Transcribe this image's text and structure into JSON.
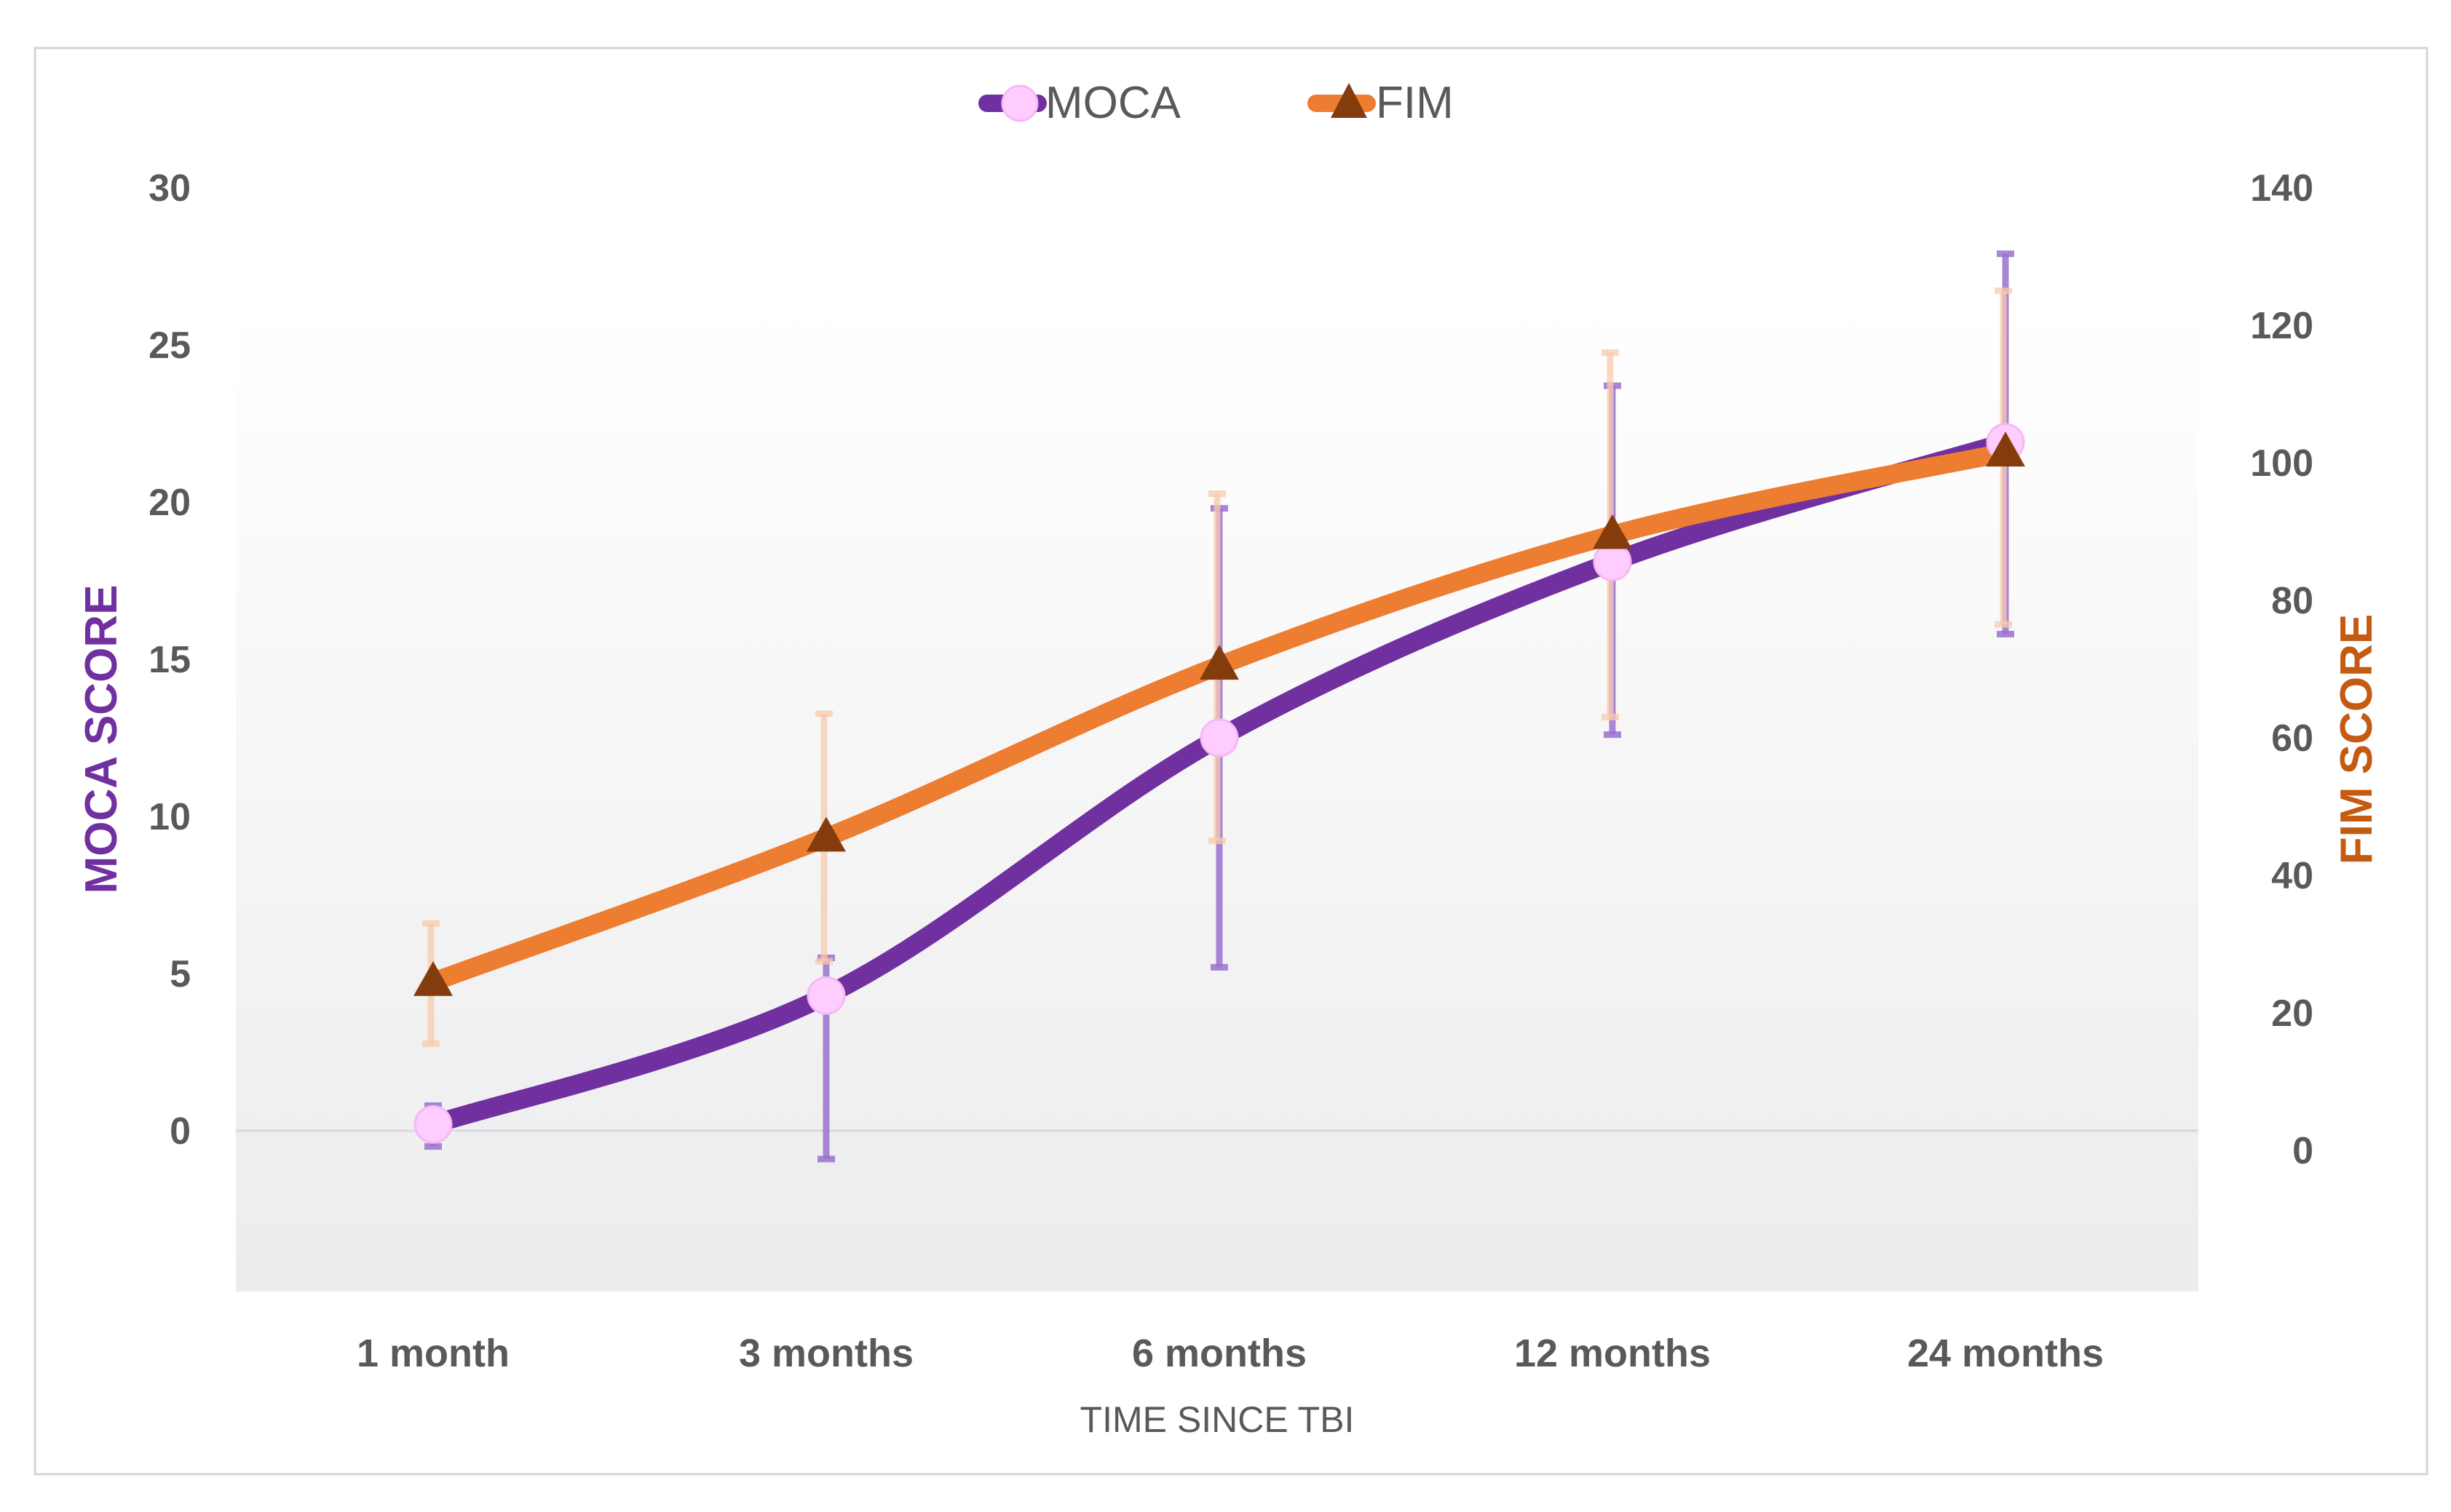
{
  "chart_data": {
    "type": "line",
    "title": "",
    "categories": [
      "1 month",
      "3 months",
      "6 months",
      "12 months",
      "24 months"
    ],
    "xlabel": "TIME SINCE TBI",
    "y_left": {
      "label": "MOCA SCORE",
      "ylim": [
        -5,
        30
      ],
      "ticks": [
        0,
        5,
        10,
        15,
        20,
        25,
        30
      ]
    },
    "y_right": {
      "label": "FIM SCORE",
      "ylim": [
        -20,
        140
      ],
      "ticks": [
        0,
        20,
        40,
        60,
        80,
        100,
        120,
        140
      ]
    },
    "legend_position": "top-center",
    "series": [
      {
        "name": "MOCA",
        "axis": "left",
        "color": "#7030A0",
        "marker": "circle",
        "marker_color": "#FFCCFF",
        "errorbar_color": "#9B72CF",
        "values": [
          0.2,
          4.3,
          12.5,
          18.1,
          21.9
        ],
        "err_low": [
          -0.5,
          -0.9,
          5.2,
          12.6,
          15.8
        ],
        "err_high": [
          0.8,
          5.5,
          19.8,
          23.7,
          27.9
        ]
      },
      {
        "name": "FIM",
        "axis": "right",
        "color": "#ED7D31",
        "marker": "triangle",
        "marker_color": "#843C0C",
        "errorbar_color": "#F8CBAD",
        "values": [
          24.5,
          45.5,
          70.5,
          89.5,
          101.5
        ],
        "err_low": [
          15.5,
          27.5,
          45.0,
          63.0,
          76.5
        ],
        "err_high": [
          33.0,
          63.5,
          95.5,
          116.0,
          125.0
        ]
      }
    ]
  }
}
